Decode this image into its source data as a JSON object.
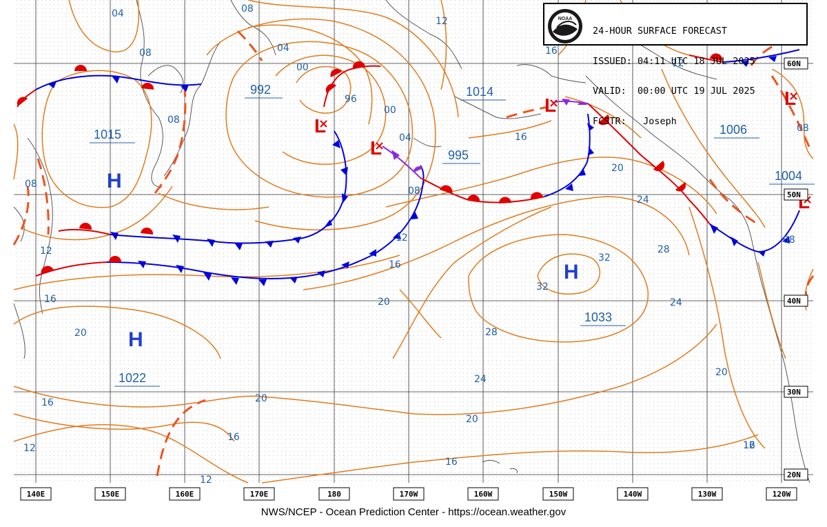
{
  "header": {
    "title": "24-HOUR SURFACE FORECAST",
    "issued_label": "ISSUED:",
    "issued": "04:11 UTC 18 JUL 2025",
    "valid_label": "VALID:",
    "valid": "00:00 UTC 19 JUL 2025",
    "forecaster_label": "FCSTR:",
    "forecaster": "Joseph",
    "logo_text": "NOAA"
  },
  "footer": "NWS/NCEP - Ocean Prediction Center - https://ocean.weather.gov",
  "colors": {
    "isobar": "#e07a1c",
    "cold_front": "#0000dd",
    "warm_front": "#e00000",
    "occluded_front": "#8a2be2",
    "trough": "#f0521c",
    "grid": "#333333",
    "coast": "#555555",
    "pressure_label": "#1f5fa8",
    "low_marker": "#e00000",
    "high_marker": "#1f3fcf"
  },
  "lon_labels": [
    "140E",
    "150E",
    "160E",
    "170E",
    "180",
    "170W",
    "160W",
    "150W",
    "140W",
    "130W",
    "120W"
  ],
  "lat_labels": [
    "60N",
    "50N",
    "40N",
    "30N",
    "20N"
  ],
  "systems": [
    {
      "type": "H",
      "pressure": "1015"
    },
    {
      "type": "H",
      "pressure": "1022"
    },
    {
      "type": "H",
      "pressure": "1033"
    },
    {
      "type": "L",
      "pressure": "992"
    },
    {
      "type": "L",
      "pressure": "995"
    },
    {
      "type": "L",
      "pressure": "1014"
    },
    {
      "type": "L",
      "pressure": "1006"
    },
    {
      "type": "L",
      "pressure": "1004"
    }
  ],
  "isobar_labels": [
    "04",
    "08",
    "08",
    "08",
    "04",
    "00",
    "96",
    "00",
    "04",
    "08",
    "12",
    "12",
    "16",
    "16",
    "20",
    "20",
    "24",
    "28",
    "32",
    "32",
    "28",
    "24",
    "24",
    "20",
    "20",
    "20",
    "16",
    "16",
    "16",
    "12",
    "12",
    "12",
    "16",
    "12",
    "08",
    "08",
    "16",
    "20",
    "12",
    "08",
    "16"
  ]
}
